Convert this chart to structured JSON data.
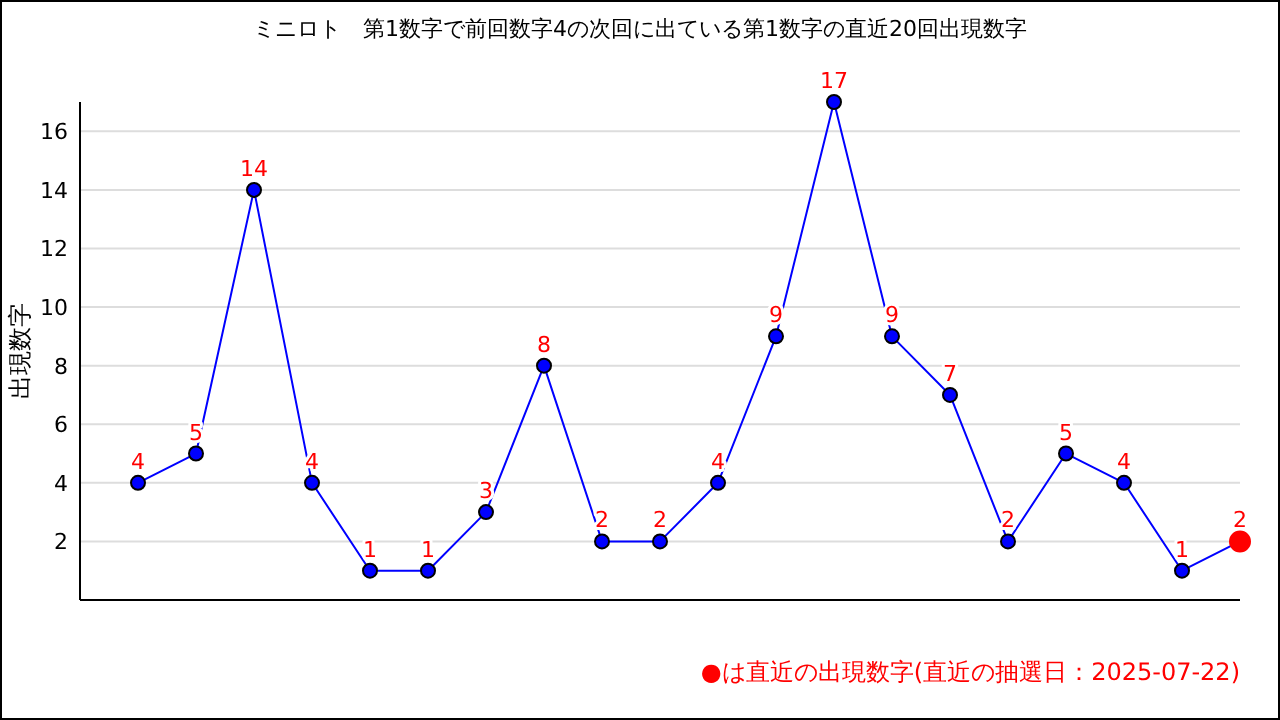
{
  "chart_data": {
    "type": "line",
    "title": "ミニロト　第1数字で前回数字4の次回に出ている第1数字の直近20回出現数字",
    "ylabel": "出現数字",
    "categories": [
      null,
      null,
      null,
      null,
      null,
      null,
      null,
      null,
      null,
      null,
      null,
      null,
      null,
      null,
      null,
      null,
      null,
      null,
      null,
      null
    ],
    "series": [
      {
        "color": "#0000ff",
        "colors": [
          "#0000ff",
          "#0000ff",
          "#0000ff",
          "#0000ff",
          "#0000ff",
          "#0000ff",
          "#0000ff",
          "#0000ff",
          "#0000ff",
          "#0000ff",
          "#0000ff",
          "#0000ff",
          "#0000ff",
          "#0000ff",
          "#0000ff",
          "#0000ff",
          "#0000ff",
          "#0000ff",
          "#0000ff",
          "#ff0000"
        ],
        "values": [
          4,
          5,
          14,
          4,
          1,
          1,
          3,
          8,
          2,
          2,
          4,
          9,
          17,
          9,
          7,
          2,
          5,
          4,
          1,
          2
        ]
      }
    ],
    "ylim": [
      0,
      17
    ],
    "yticks": [
      2,
      4,
      6,
      8,
      10,
      12,
      14,
      16
    ],
    "grid": "y",
    "marker": "circle",
    "data_labels": true,
    "annotations": [
      "●は直近の出現数字(直近の抽選日：2025-07-22)"
    ]
  }
}
